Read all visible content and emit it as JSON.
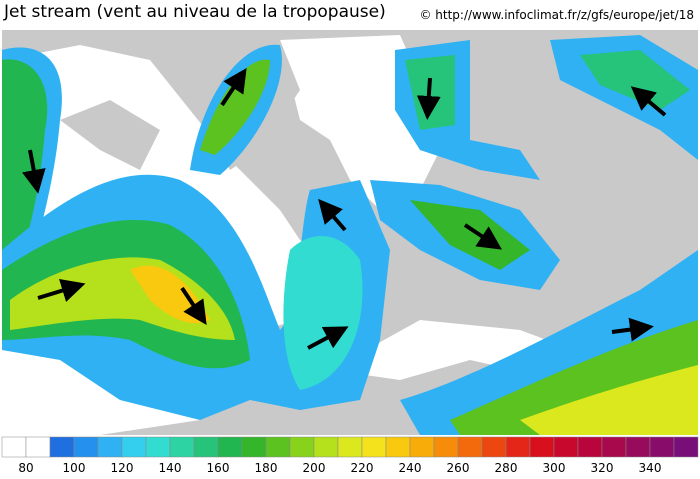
{
  "header": {
    "title": "Jet stream (vent au niveau de la tropopause)",
    "credit": "© http://www.infoclimat.fr/z/gfs/europe/jet/18"
  },
  "colorbar": {
    "colors": [
      "#ffffff",
      "#ffffff",
      "#1f6fe0",
      "#2590ee",
      "#2fb1f3",
      "#34cfee",
      "#33dcd0",
      "#2ed3a4",
      "#25c47a",
      "#22b650",
      "#35b52a",
      "#5cc21f",
      "#89d21c",
      "#b5e01c",
      "#dbe81e",
      "#f4e31c",
      "#f8c90e",
      "#f7ac0a",
      "#f68c0a",
      "#f26a0c",
      "#ec4710",
      "#e42618",
      "#d8101e",
      "#c8082c",
      "#b8063c",
      "#a8084c",
      "#980a5c",
      "#880c6a",
      "#780e78"
    ],
    "labels": [
      80,
      100,
      120,
      140,
      160,
      180,
      200,
      220,
      240,
      260,
      280,
      300,
      320,
      340
    ]
  }
}
